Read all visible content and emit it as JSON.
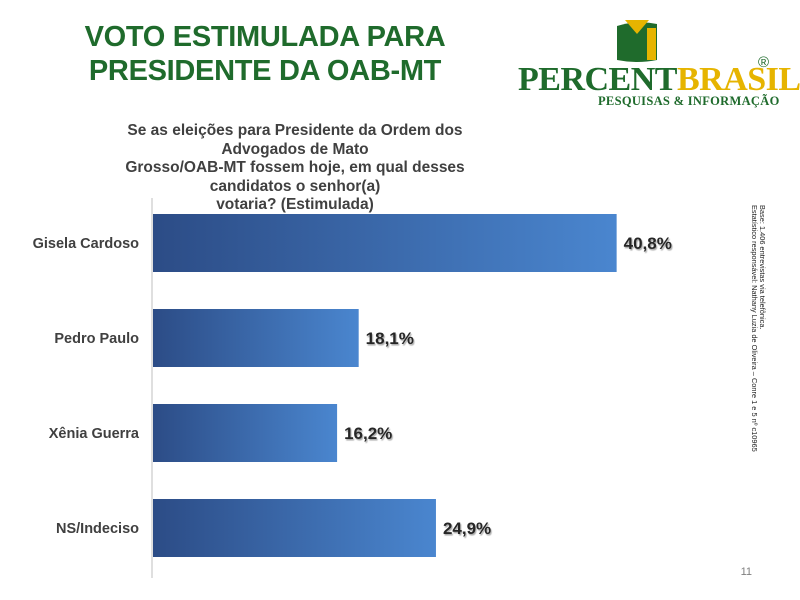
{
  "header": {
    "title_line1": "VOTO ESTIMULADA PARA",
    "title_line2": "PRESIDENTE  DA OAB-MT"
  },
  "logo": {
    "word_part1": "PERCENT",
    "word_part2": "BRASIL",
    "registered_mark": "®",
    "tagline": "PESQUISAS & INFORMAÇÃO",
    "colors": {
      "green": "#1f6b2c",
      "yellow": "#e6b400"
    }
  },
  "question": {
    "line1": "Se as eleições para Presidente da Ordem dos Advogados de Mato",
    "line2": "Grosso/OAB-MT fossem hoje, em qual desses candidatos o senhor(a)",
    "line3": "votaria? (Estimulada)"
  },
  "footnote": {
    "line1": "Base: 1.406 entrevistas via telefônica.",
    "line2": "Estatístico responsável: Nathany Luzia de Oliveira – Conre 1 e 5 nº c10965"
  },
  "page_number": "11",
  "chart_data": {
    "type": "bar",
    "orientation": "horizontal",
    "categories": [
      "Gisela Cardoso",
      "Pedro Paulo",
      "Xênia Guerra",
      "NS/Indeciso"
    ],
    "values": [
      40.8,
      18.1,
      16.2,
      24.9
    ],
    "value_labels": [
      "40,8%",
      "18,1%",
      "16,2%",
      "24,9%"
    ],
    "xlim": [
      0,
      44
    ],
    "grid": false,
    "bar_gradient": [
      "#2c4c86",
      "#4a86cf"
    ]
  }
}
